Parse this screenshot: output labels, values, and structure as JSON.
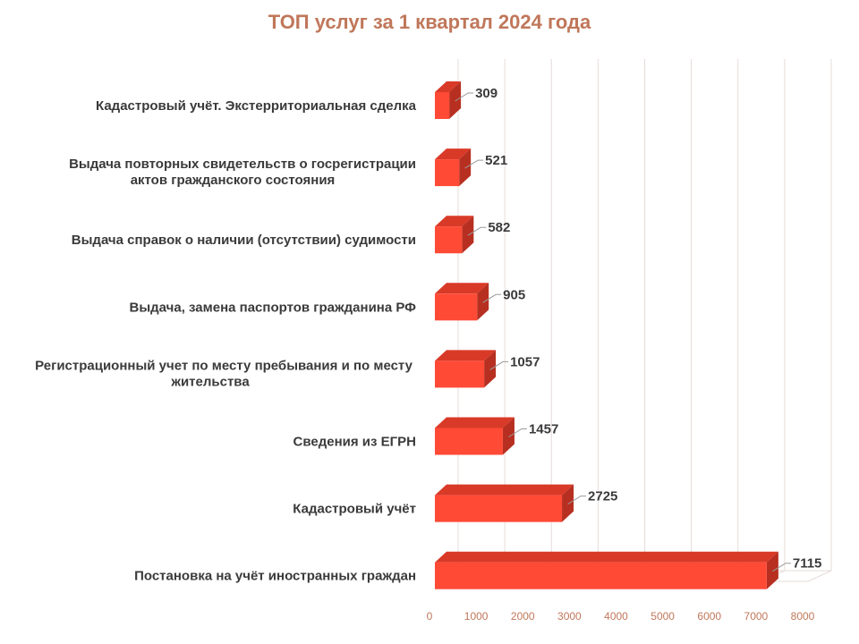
{
  "chart_data": {
    "type": "bar",
    "orientation": "horizontal",
    "style": "3d",
    "title": "ТОП услуг за 1 квартал 2024 года",
    "categories": [
      "Кадастровый учёт. Экстерриториальная сделка",
      "Выдача повторных свидетельств о госрегистрации актов гражданского состояния",
      "Выдача справок о наличии (отсутствии) судимости",
      "Выдача, замена паспортов гражданина РФ",
      "Регистрационный учет по месту пребывания и по месту жительства",
      "Сведения из ЕГРН",
      "Кадастровый учёт",
      "Постановка на учёт иностранных граждан"
    ],
    "category_lines": [
      [
        "Кадастровый учёт. Экстерриториальная сделка"
      ],
      [
        "Выдача повторных свидетельств о госрегистрации",
        "актов гражданского состояния"
      ],
      [
        "Выдача справок о наличии (отсутствии) судимости"
      ],
      [
        "Выдача, замена паспортов гражданина РФ"
      ],
      [
        "Регистрационный учет по месту пребывания и по месту",
        "жительства"
      ],
      [
        "Сведения из ЕГРН"
      ],
      [
        "Кадастровый учёт"
      ],
      [
        "Постановка на учёт иностранных граждан"
      ]
    ],
    "values": [
      309,
      521,
      582,
      905,
      1057,
      1457,
      2725,
      7115
    ],
    "xlim": [
      0,
      8000
    ],
    "xticks": [
      0,
      1000,
      2000,
      3000,
      4000,
      5000,
      6000,
      7000,
      8000
    ],
    "grid": true,
    "legend": "none",
    "colors": {
      "bar_front": "#ff4a36",
      "bar_top": "#d93a28",
      "bar_side": "#b72f20",
      "title": "#c0775a",
      "tick": "#c0775a",
      "grid": "#e6dcd8",
      "text": "#3a3a3a"
    }
  }
}
